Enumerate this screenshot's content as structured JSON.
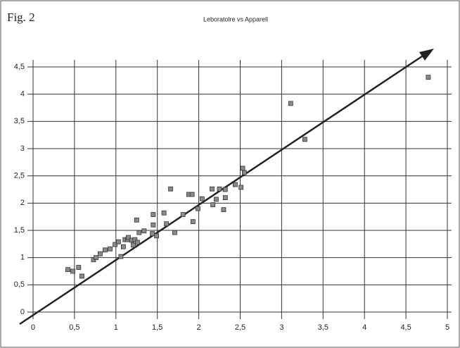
{
  "chart_data": {
    "type": "scatter",
    "figure_label": "Fig. 2",
    "title": "Leboratolre vs Apparell",
    "color": "#8a8a8a",
    "x": [
      0.42,
      0.48,
      0.55,
      0.59,
      0.73,
      0.76,
      0.81,
      0.87,
      0.93,
      0.99,
      1.03,
      1.06,
      1.09,
      1.11,
      1.14,
      1.15,
      1.19,
      1.21,
      1.23,
      1.25,
      1.26,
      1.28,
      1.34,
      1.44,
      1.45,
      1.45,
      1.49,
      1.58,
      1.61,
      1.66,
      1.71,
      1.81,
      1.88,
      1.92,
      1.93,
      1.99,
      2.04,
      2.16,
      2.17,
      2.21,
      2.25,
      2.3,
      2.32,
      2.32,
      2.44,
      2.51,
      2.53,
      2.55,
      3.11,
      3.28,
      4.77
    ],
    "values": [
      0.78,
      0.75,
      0.82,
      0.66,
      0.96,
      1.0,
      1.07,
      1.14,
      1.16,
      1.24,
      1.29,
      1.02,
      1.2,
      1.33,
      1.33,
      1.37,
      1.32,
      1.23,
      1.33,
      1.69,
      1.28,
      1.46,
      1.49,
      1.44,
      1.79,
      1.6,
      1.4,
      1.82,
      1.62,
      2.26,
      1.46,
      1.79,
      2.16,
      2.16,
      1.66,
      1.9,
      2.08,
      2.26,
      1.97,
      2.07,
      2.26,
      1.88,
      2.25,
      2.1,
      2.34,
      2.29,
      2.64,
      2.56,
      3.83,
      3.17,
      4.31
    ],
    "xlim": [
      0,
      5
    ],
    "xticks": [
      0,
      {
        "value": 0.5,
        "label": "0,5"
      },
      1,
      {
        "value": 1.5,
        "label": "1,5"
      },
      2,
      {
        "value": 2.5,
        "label": "2,5"
      },
      3,
      {
        "value": 3.5,
        "label": "3,5"
      },
      4,
      {
        "value": 4.5,
        "label": "4,5"
      },
      5
    ],
    "ylim": [
      0,
      4.5
    ],
    "yticks": [
      0,
      {
        "value": 0.5,
        "label": "0,5"
      },
      1,
      {
        "value": 1.5,
        "label": "1,5"
      },
      2,
      {
        "value": 2.5,
        "label": "2,5"
      },
      3,
      {
        "value": 3.5,
        "label": "3,5"
      },
      4,
      {
        "value": 4.5,
        "label": "4,5"
      }
    ],
    "grid": true
  }
}
